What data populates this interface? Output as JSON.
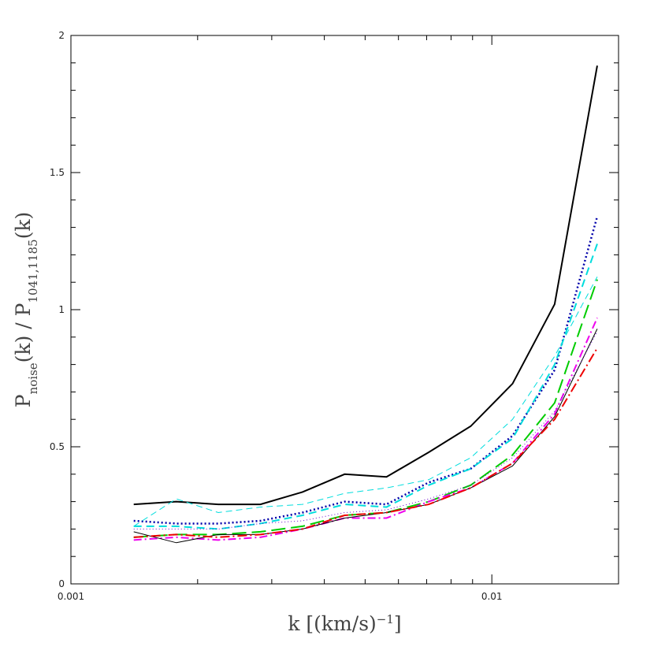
{
  "chart_data": {
    "type": "line",
    "x": [
      0.00141,
      0.00178,
      0.00224,
      0.00282,
      0.00355,
      0.00447,
      0.00562,
      0.00708,
      0.00891,
      0.0112,
      0.0141,
      0.0178
    ],
    "series": [
      {
        "color": "#000000",
        "width": 2,
        "dash": "none",
        "values": [
          0.29,
          0.3,
          0.29,
          0.29,
          0.335,
          0.4,
          0.39,
          0.48,
          0.575,
          0.73,
          1.02,
          1.89
        ]
      },
      {
        "color": "#0000aa",
        "width": 2.5,
        "dash": "2 3",
        "values": [
          0.23,
          0.22,
          0.22,
          0.23,
          0.26,
          0.3,
          0.29,
          0.37,
          0.42,
          0.54,
          0.78,
          1.34
        ]
      },
      {
        "color": "#00dddd",
        "width": 2,
        "dash": "10 6",
        "values": [
          0.21,
          0.21,
          0.2,
          0.22,
          0.25,
          0.29,
          0.28,
          0.36,
          0.42,
          0.53,
          0.8,
          1.24
        ]
      },
      {
        "color": "#00dddd",
        "width": 1,
        "dash": "8 5",
        "values": [
          0.21,
          0.31,
          0.26,
          0.28,
          0.29,
          0.33,
          0.35,
          0.38,
          0.46,
          0.6,
          0.83,
          1.12
        ]
      },
      {
        "color": "#00cc00",
        "width": 2,
        "dash": "18 7",
        "values": [
          0.17,
          0.18,
          0.18,
          0.19,
          0.21,
          0.25,
          0.26,
          0.3,
          0.36,
          0.47,
          0.66,
          1.11
        ]
      },
      {
        "color": "#ee00ee",
        "width": 2,
        "dash": "10 4 2 4",
        "values": [
          0.16,
          0.17,
          0.16,
          0.17,
          0.2,
          0.24,
          0.24,
          0.3,
          0.35,
          0.44,
          0.62,
          0.97
        ]
      },
      {
        "color": "#000000",
        "width": 1,
        "dash": "none",
        "values": [
          0.19,
          0.15,
          0.18,
          0.18,
          0.2,
          0.24,
          0.26,
          0.29,
          0.35,
          0.43,
          0.61,
          0.93
        ]
      },
      {
        "color": "#6600cc",
        "width": 1,
        "dash": "1 3",
        "values": [
          0.2,
          0.2,
          0.2,
          0.22,
          0.23,
          0.26,
          0.27,
          0.31,
          0.36,
          0.46,
          0.63,
          0.92
        ]
      },
      {
        "color": "#ee0000",
        "width": 2,
        "dash": "12 4 2 4",
        "values": [
          0.17,
          0.18,
          0.17,
          0.18,
          0.2,
          0.25,
          0.26,
          0.29,
          0.35,
          0.44,
          0.6,
          0.86
        ]
      }
    ],
    "xlog": true,
    "xlim": [
      0.001,
      0.02
    ],
    "xticks": [
      0.001,
      0.01
    ],
    "xminorticks": [
      0.002,
      0.003,
      0.004,
      0.005,
      0.006,
      0.007,
      0.008,
      0.009,
      0.02
    ],
    "ylim": [
      0,
      2
    ],
    "yticks": [
      0,
      0.5,
      1,
      1.5,
      2
    ],
    "yminorticks": [
      0.1,
      0.2,
      0.3,
      0.4,
      0.6,
      0.7,
      0.8,
      0.9,
      1.1,
      1.2,
      1.3,
      1.4,
      1.6,
      1.7,
      1.8,
      1.9
    ],
    "xlabel": [
      {
        "text": "k  [(km/s)"
      },
      {
        "text": "−1",
        "sup": true
      },
      {
        "text": "]"
      }
    ],
    "ylabel": [
      {
        "text": "P"
      },
      {
        "text": "noise",
        "sub": true
      },
      {
        "text": "(k)  /  P"
      },
      {
        "text": "1041,1185",
        "sub": true
      },
      {
        "text": "(k)"
      }
    ]
  }
}
